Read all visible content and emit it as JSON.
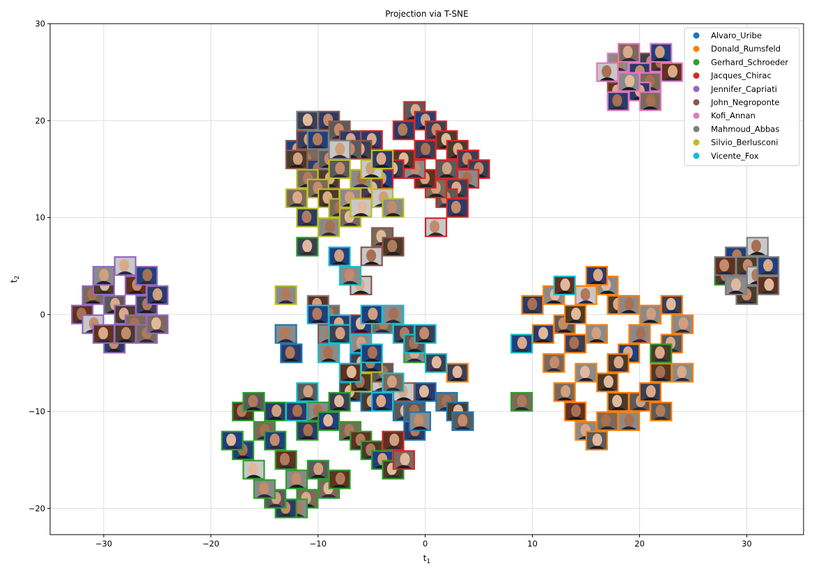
{
  "chart_data": {
    "type": "scatter",
    "title": "Projection via T-SNE",
    "xlabel": "t",
    "xlabel_sub": "1",
    "ylabel": "t",
    "ylabel_sub": "2",
    "xlim": [
      -35,
      35.3
    ],
    "ylim": [
      -22.7,
      30
    ],
    "xticks": [
      -30,
      -20,
      -10,
      0,
      10,
      20,
      30
    ],
    "yticks": [
      -20,
      -10,
      0,
      10,
      20,
      30
    ],
    "xtick_labels": [
      "−30",
      "−20",
      "−10",
      "0",
      "10",
      "20",
      "30"
    ],
    "ytick_labels": [
      "−20",
      "−10",
      "0",
      "10",
      "20",
      "30"
    ],
    "grid": true,
    "legend_position": "top-right",
    "marker": "face-thumbnail",
    "series": [
      {
        "name": "Alvaro_Uribe",
        "color": "#1f77b4",
        "points": [
          [
            -13,
            -2
          ],
          [
            -12.5,
            -4
          ],
          [
            -7,
            -8
          ],
          [
            -5,
            -9
          ],
          [
            -4,
            -7
          ],
          [
            -3,
            -9
          ],
          [
            -2,
            -10
          ],
          [
            -1,
            -12
          ],
          [
            -1,
            -10
          ],
          [
            -0.5,
            -11
          ],
          [
            0,
            -8
          ],
          [
            2,
            -9
          ],
          [
            3,
            -10
          ],
          [
            3.5,
            -11
          ],
          [
            -6,
            -5
          ],
          [
            -9,
            -3
          ]
        ]
      },
      {
        "name": "Donald_Rumsfeld",
        "color": "#ff7f0e",
        "points": [
          [
            10,
            1
          ],
          [
            12,
            -5
          ],
          [
            13,
            -8
          ],
          [
            14,
            -10
          ],
          [
            15,
            -12
          ],
          [
            16,
            -13
          ],
          [
            17,
            -11
          ],
          [
            18,
            -9
          ],
          [
            19,
            -11
          ],
          [
            20,
            -9
          ],
          [
            21,
            -8
          ],
          [
            22,
            -6
          ],
          [
            23,
            -3
          ],
          [
            24,
            -1
          ],
          [
            24,
            -6
          ],
          [
            23,
            1
          ],
          [
            19,
            -4
          ],
          [
            18,
            1
          ],
          [
            17,
            3
          ],
          [
            16,
            -2
          ],
          [
            15,
            2
          ],
          [
            14,
            -3
          ],
          [
            13,
            -1
          ],
          [
            11,
            -2
          ],
          [
            15,
            -6
          ],
          [
            17,
            -7
          ],
          [
            20,
            -2
          ],
          [
            21,
            0
          ],
          [
            19,
            1
          ],
          [
            16,
            4
          ],
          [
            14,
            0
          ],
          [
            12,
            2
          ],
          [
            3,
            -6
          ],
          [
            18,
            -5
          ],
          [
            22,
            -10
          ]
        ]
      },
      {
        "name": "Gerhard_Schroeder",
        "color": "#2ca02c",
        "points": [
          [
            -17,
            -10
          ],
          [
            -16,
            -9
          ],
          [
            -15,
            -12
          ],
          [
            -14,
            -13
          ],
          [
            -13,
            -15
          ],
          [
            -12,
            -17
          ],
          [
            -11,
            -19
          ],
          [
            -12,
            -20
          ],
          [
            -13,
            -20
          ],
          [
            -14,
            -19
          ],
          [
            -15,
            -18
          ],
          [
            -16,
            -16
          ],
          [
            -17,
            -14
          ],
          [
            -18,
            -13
          ],
          [
            -10,
            -16
          ],
          [
            -9,
            -18
          ],
          [
            -8,
            -17
          ],
          [
            -7,
            -12
          ],
          [
            -6,
            -13
          ],
          [
            -5,
            -14
          ],
          [
            -4,
            -15
          ],
          [
            -3,
            -16
          ],
          [
            -11,
            -12
          ],
          [
            -10,
            -10
          ],
          [
            -9,
            -11
          ],
          [
            -8,
            -9
          ],
          [
            -7,
            -6
          ],
          [
            -1,
            -4
          ],
          [
            9,
            -9
          ],
          [
            28,
            4
          ],
          [
            -11,
            7
          ],
          [
            22,
            -4
          ],
          [
            -14,
            -10
          ]
        ]
      },
      {
        "name": "Jacques_Chirac",
        "color": "#d62728",
        "points": [
          [
            -1,
            21
          ],
          [
            0,
            20
          ],
          [
            1,
            19
          ],
          [
            2,
            18
          ],
          [
            3,
            17
          ],
          [
            4,
            16
          ],
          [
            5,
            15
          ],
          [
            4,
            14
          ],
          [
            3,
            13
          ],
          [
            2,
            12
          ],
          [
            1,
            13
          ],
          [
            0,
            14
          ],
          [
            -1,
            15
          ],
          [
            -2,
            16
          ],
          [
            -3,
            15
          ],
          [
            -4,
            14
          ],
          [
            -5,
            13
          ],
          [
            3,
            11
          ],
          [
            1,
            9
          ],
          [
            -7,
            -2
          ],
          [
            -8,
            -1
          ],
          [
            -3,
            -13
          ],
          [
            -2,
            -15
          ],
          [
            -6,
            -1
          ],
          [
            2,
            15
          ],
          [
            -2,
            19
          ],
          [
            -5,
            18
          ],
          [
            0,
            17
          ]
        ]
      },
      {
        "name": "Jennifer_Capriati",
        "color": "#9467bd",
        "points": [
          [
            -31,
            2
          ],
          [
            -30,
            3
          ],
          [
            -29,
            1
          ],
          [
            -28,
            0
          ],
          [
            -27,
            -1
          ],
          [
            -26,
            -2
          ],
          [
            -25,
            -1
          ],
          [
            -26,
            1
          ],
          [
            -27,
            3
          ],
          [
            -28,
            5
          ],
          [
            -30,
            4
          ],
          [
            -32,
            0
          ],
          [
            -31,
            -1
          ],
          [
            -29,
            -3
          ],
          [
            -30,
            -2
          ],
          [
            -26,
            4
          ],
          [
            -25,
            2
          ],
          [
            -28,
            -2
          ]
        ]
      },
      {
        "name": "John_Negroponte",
        "color": "#8c564b",
        "points": [
          [
            -12,
            17
          ],
          [
            -11,
            18
          ],
          [
            -10,
            19
          ],
          [
            -9,
            20
          ],
          [
            -8,
            19
          ],
          [
            -7,
            18
          ],
          [
            -6,
            17
          ],
          [
            -11,
            16
          ],
          [
            -10,
            15
          ],
          [
            -9,
            14
          ],
          [
            -4,
            8
          ],
          [
            -3,
            7
          ],
          [
            -5,
            6
          ],
          [
            -12,
            16
          ],
          [
            -8,
            16
          ],
          [
            18,
            23
          ],
          [
            19,
            26
          ],
          [
            20,
            24
          ],
          [
            21,
            26
          ],
          [
            -4,
            -6
          ],
          [
            -9,
            -2
          ],
          [
            -6,
            3
          ],
          [
            -2,
            -8
          ],
          [
            -7,
            17
          ]
        ]
      },
      {
        "name": "Kofi_Annan",
        "color": "#e377c2",
        "points": [
          [
            18,
            26
          ],
          [
            19,
            27
          ],
          [
            20,
            25
          ],
          [
            21,
            24
          ],
          [
            22,
            26
          ],
          [
            23,
            25
          ],
          [
            20,
            23
          ],
          [
            18,
            22
          ],
          [
            19,
            24
          ],
          [
            22,
            27
          ],
          [
            21,
            22
          ],
          [
            17,
            25
          ]
        ]
      },
      {
        "name": "Mahmoud_Abbas",
        "color": "#7f7f7f",
        "points": [
          [
            -11,
            20
          ],
          [
            -10,
            18
          ],
          [
            -9,
            16
          ],
          [
            -8,
            17
          ],
          [
            29,
            6
          ],
          [
            30,
            5
          ],
          [
            31,
            4
          ],
          [
            32,
            3
          ],
          [
            30,
            2
          ],
          [
            29,
            3
          ],
          [
            31,
            7
          ],
          [
            28,
            5
          ],
          [
            32,
            5
          ],
          [
            -10,
            1
          ],
          [
            -9,
            0
          ]
        ]
      },
      {
        "name": "Silvio_Berlusconi",
        "color": "#bcbd22",
        "points": [
          [
            -12,
            12
          ],
          [
            -11,
            14
          ],
          [
            -10,
            13
          ],
          [
            -9,
            12
          ],
          [
            -8,
            11
          ],
          [
            -7,
            12
          ],
          [
            -6,
            14
          ],
          [
            -5,
            15
          ],
          [
            -4,
            12
          ],
          [
            -3,
            11
          ],
          [
            -7,
            10
          ],
          [
            -9,
            9
          ],
          [
            -11,
            10
          ],
          [
            -13,
            2
          ],
          [
            -6,
            -7
          ],
          [
            -5,
            -5
          ],
          [
            -8,
            15
          ],
          [
            -6,
            11
          ],
          [
            -4,
            16
          ]
        ]
      },
      {
        "name": "Vicente_Fox",
        "color": "#17becf",
        "points": [
          [
            -8,
            6
          ],
          [
            -7,
            4
          ],
          [
            -10,
            0
          ],
          [
            -8,
            -1
          ],
          [
            -6,
            -3
          ],
          [
            -5,
            -4
          ],
          [
            -4,
            -1
          ],
          [
            -3,
            0
          ],
          [
            -2,
            -2
          ],
          [
            -1,
            -3
          ],
          [
            0,
            -2
          ],
          [
            1,
            -5
          ],
          [
            9,
            -3
          ],
          [
            13,
            3
          ],
          [
            -9,
            -4
          ],
          [
            -7,
            -6
          ],
          [
            -4,
            -9
          ],
          [
            -3,
            -7
          ],
          [
            -11,
            -8
          ],
          [
            -12,
            -10
          ],
          [
            -5,
            0
          ],
          [
            -8,
            -2
          ]
        ]
      }
    ]
  }
}
